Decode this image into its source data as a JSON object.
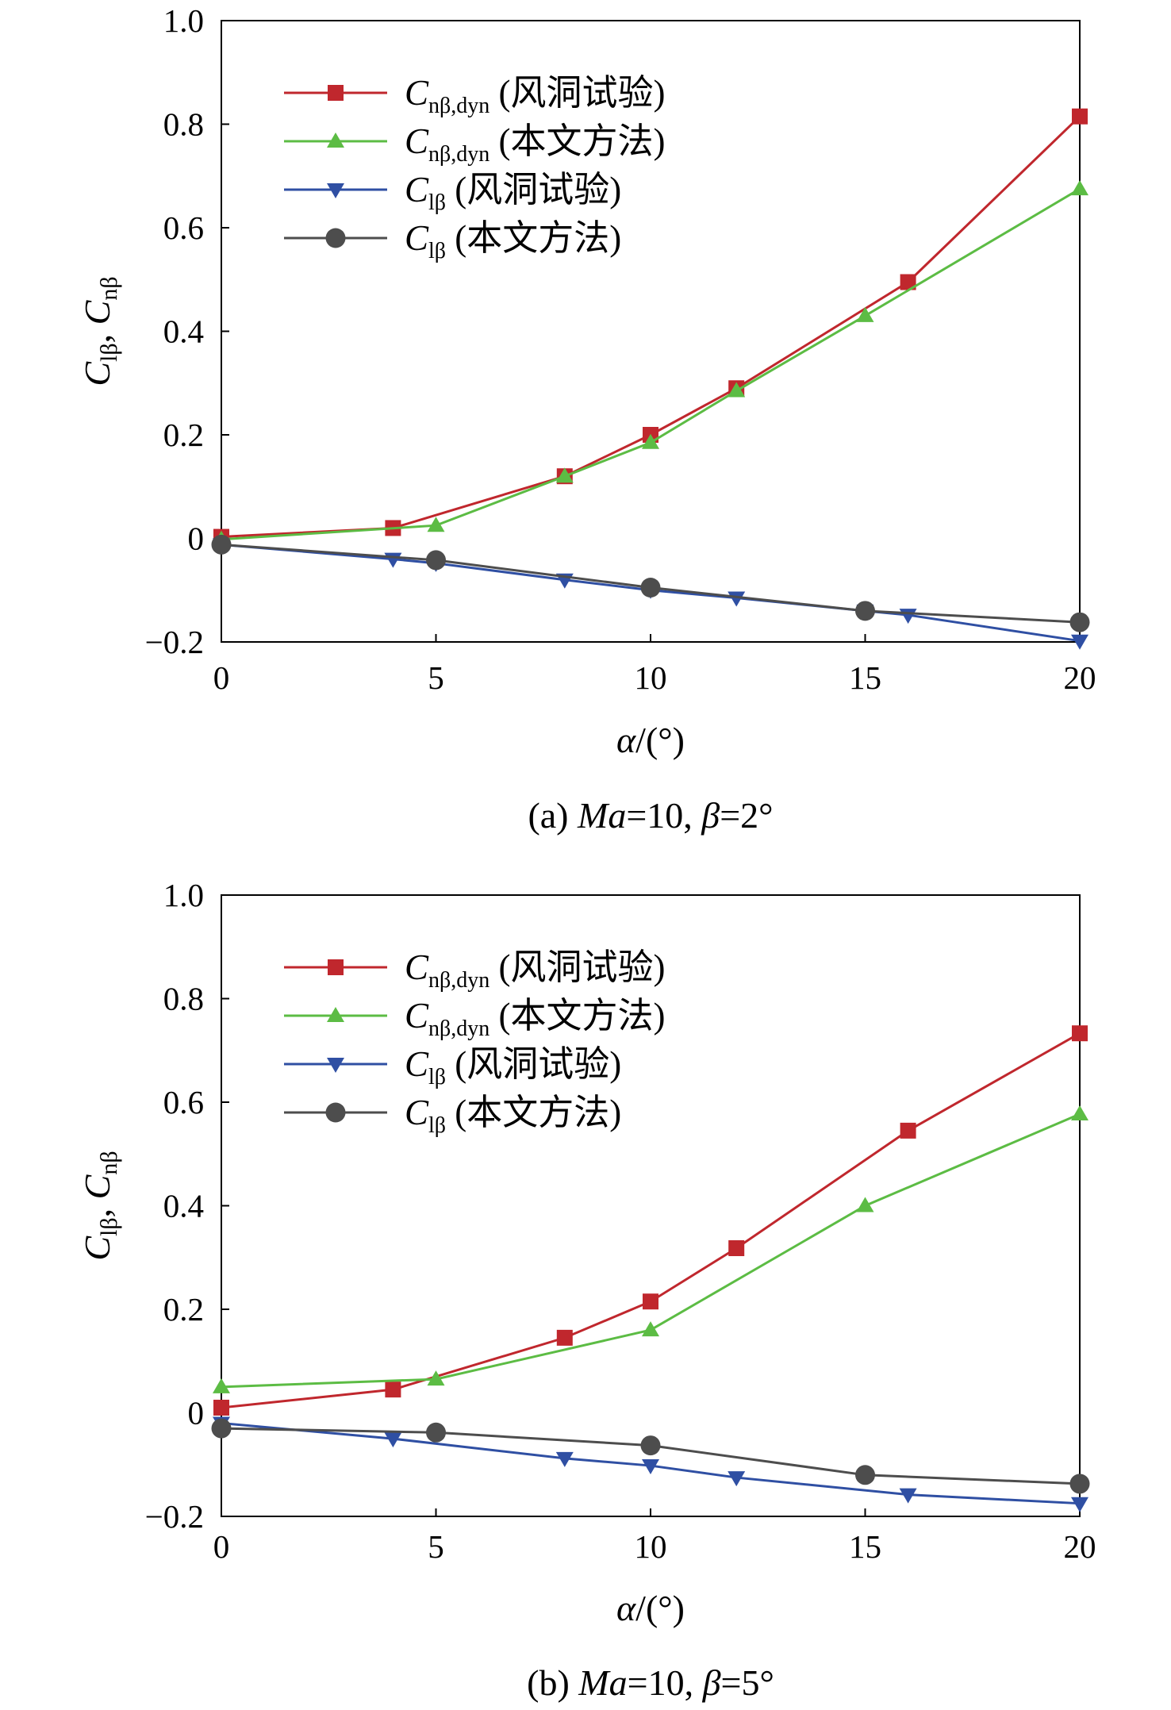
{
  "chart_data": [
    {
      "type": "line",
      "panel": "a",
      "caption_prefix": "(a) ",
      "caption_ma": "Ma",
      "caption_rest": "=10, ",
      "caption_beta": "β",
      "caption_angle": "=2°",
      "xlabel_var": "α",
      "xlabel_unit": "/(°)",
      "ylabel_C": "C",
      "ylabel_sub1": "lβ",
      "ylabel_sep": ", ",
      "ylabel_sub2": "nβ",
      "xlim": [
        0,
        20
      ],
      "ylim": [
        -0.2,
        1.0
      ],
      "xticks": [
        0,
        5,
        10,
        15,
        20
      ],
      "yticks": [
        -0.2,
        0,
        0.2,
        0.4,
        0.6,
        0.8,
        1.0
      ],
      "xtick_labels": [
        "0",
        "5",
        "10",
        "15",
        "20"
      ],
      "ytick_labels": [
        "−0.2",
        "0",
        "0.2",
        "0.4",
        "0.6",
        "0.8",
        "1.0"
      ],
      "legend_position": "top-left",
      "series": [
        {
          "legend_C": "C",
          "legend_sub": "nβ,dyn",
          "legend_desc": " (风洞试验)",
          "color": "#c0272d",
          "marker": "square",
          "x": [
            0,
            4,
            8,
            10,
            12,
            16,
            20
          ],
          "y": [
            0.003,
            0.02,
            0.12,
            0.2,
            0.29,
            0.495,
            0.815
          ]
        },
        {
          "legend_C": "C",
          "legend_sub": "nβ,dyn",
          "legend_desc": " (本文方法)",
          "color": "#5cbc44",
          "marker": "triangle-up",
          "x": [
            0,
            5,
            8,
            10,
            12,
            15,
            20
          ],
          "y": [
            -0.002,
            0.025,
            0.12,
            0.185,
            0.285,
            0.43,
            0.675
          ]
        },
        {
          "legend_C": "C",
          "legend_sub": "lβ",
          "legend_desc": " (风洞试验)",
          "color": "#2f4fa3",
          "marker": "triangle-down",
          "x": [
            0,
            4,
            5,
            8,
            10,
            12,
            15,
            16,
            20
          ],
          "y": [
            -0.012,
            -0.04,
            -0.048,
            -0.08,
            -0.1,
            -0.115,
            -0.14,
            -0.148,
            -0.198
          ]
        },
        {
          "legend_C": "C",
          "legend_sub": "lβ",
          "legend_desc": " (本文方法)",
          "color": "#4d4d4d",
          "marker": "circle",
          "x": [
            0,
            5,
            10,
            15,
            20
          ],
          "y": [
            -0.012,
            -0.042,
            -0.095,
            -0.14,
            -0.162
          ]
        }
      ]
    },
    {
      "type": "line",
      "panel": "b",
      "caption_prefix": "(b) ",
      "caption_ma": "Ma",
      "caption_rest": "=10, ",
      "caption_beta": "β",
      "caption_angle": "=5°",
      "xlabel_var": "α",
      "xlabel_unit": "/(°)",
      "ylabel_C": "C",
      "ylabel_sub1": "lβ",
      "ylabel_sep": ", ",
      "ylabel_sub2": "nβ",
      "xlim": [
        0,
        20
      ],
      "ylim": [
        -0.2,
        1.0
      ],
      "xticks": [
        0,
        5,
        10,
        15,
        20
      ],
      "yticks": [
        -0.2,
        0,
        0.2,
        0.4,
        0.6,
        0.8,
        1.0
      ],
      "xtick_labels": [
        "0",
        "5",
        "10",
        "15",
        "20"
      ],
      "ytick_labels": [
        "−0.2",
        "0",
        "0.2",
        "0.4",
        "0.6",
        "0.8",
        "1.0"
      ],
      "legend_position": "top-left",
      "series": [
        {
          "legend_C": "C",
          "legend_sub": "nβ,dyn",
          "legend_desc": " (风洞试验)",
          "color": "#c0272d",
          "marker": "square",
          "x": [
            0,
            4,
            8,
            10,
            12,
            16,
            20
          ],
          "y": [
            0.01,
            0.045,
            0.145,
            0.215,
            0.318,
            0.545,
            0.733
          ]
        },
        {
          "legend_C": "C",
          "legend_sub": "nβ,dyn",
          "legend_desc": " (本文方法)",
          "color": "#5cbc44",
          "marker": "triangle-up",
          "x": [
            0,
            5,
            10,
            15,
            20
          ],
          "y": [
            0.05,
            0.065,
            0.16,
            0.4,
            0.577
          ]
        },
        {
          "legend_C": "C",
          "legend_sub": "lβ",
          "legend_desc": " (风洞试验)",
          "color": "#2f4fa3",
          "marker": "triangle-down",
          "x": [
            0,
            4,
            8,
            10,
            12,
            16,
            20
          ],
          "y": [
            -0.02,
            -0.05,
            -0.088,
            -0.102,
            -0.125,
            -0.158,
            -0.175
          ]
        },
        {
          "legend_C": "C",
          "legend_sub": "lβ",
          "legend_desc": " (本文方法)",
          "color": "#4d4d4d",
          "marker": "circle",
          "x": [
            0,
            5,
            10,
            15,
            20
          ],
          "y": [
            -0.03,
            -0.038,
            -0.063,
            -0.12,
            -0.137
          ]
        }
      ]
    }
  ]
}
